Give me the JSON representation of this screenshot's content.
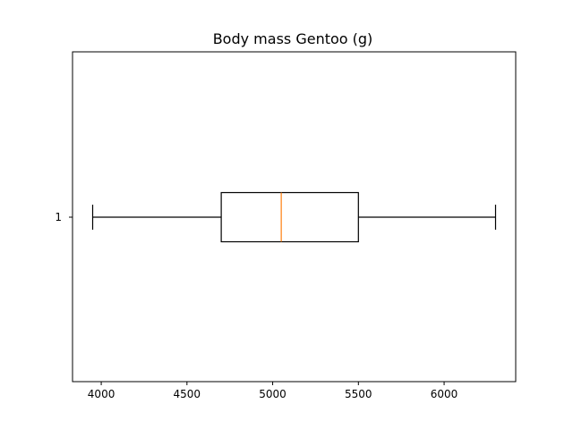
{
  "chart_data": {
    "type": "boxplot",
    "orientation": "horizontal",
    "title": "Body mass Gentoo (g)",
    "xlabel": "",
    "ylabel": "",
    "xlim": [
      3832.5,
      6417.5
    ],
    "xticks": [
      4000,
      4500,
      5000,
      5500,
      6000
    ],
    "yticks": [
      "1"
    ],
    "grid": false,
    "boxes": [
      {
        "label": "1",
        "whisker_low": 3950,
        "q1": 4700,
        "median": 5050,
        "q3": 5500,
        "whisker_high": 6300
      }
    ],
    "colors": {
      "box": "#000000",
      "median": "#ff7f0e",
      "axes": "#000000"
    }
  }
}
